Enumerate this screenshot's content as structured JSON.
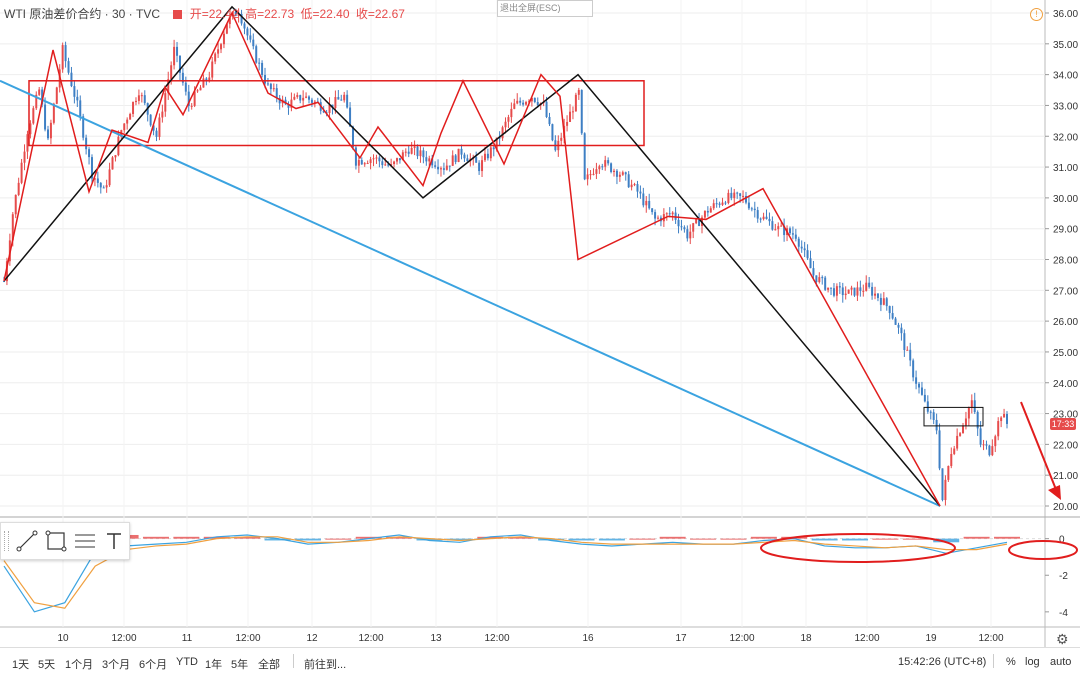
{
  "header": {
    "title": "WTI 原油差价合约 · 30 · TVC",
    "open": "开=22.42",
    "high": "高=22.73",
    "low": "低=22.40",
    "close": "收=22.67"
  },
  "exit_fullscreen": "退出全屏(ESC)",
  "price_tag": "17:33",
  "ranges": [
    "1天",
    "5天",
    "1个月",
    "3个月",
    "6个月",
    "YTD",
    "1年",
    "5年",
    "全部"
  ],
  "goto": "前往到...",
  "clock": "15:42:26 (UTC+8)",
  "options": [
    "%",
    "log",
    "auto"
  ],
  "toolbar_icons": [
    "line-tool-icon",
    "rectangle-tool-icon",
    "fib-tool-icon",
    "text-tool-icon"
  ],
  "colors": {
    "up": "#e64b4b",
    "down": "#3e7fc4",
    "trendline": "#3ba3e0",
    "zigzag_red": "#e11d1d",
    "zigzag_black": "#111111",
    "macd_line": "#3ba3e0",
    "signal_line": "#f0a040"
  },
  "chart_data": [
    {
      "type": "candlestick",
      "title": "WTI 原油差价合约 · 30 · TVC",
      "y_axis_ticks": [
        20.0,
        21.0,
        22.0,
        23.0,
        24.0,
        25.0,
        26.0,
        27.0,
        28.0,
        29.0,
        30.0,
        31.0,
        32.0,
        33.0,
        34.0,
        35.0,
        36.0
      ],
      "x_axis_ticks": [
        "10",
        "12:00",
        "11",
        "12:00",
        "12",
        "12:00",
        "13",
        "12:00",
        "16",
        "17",
        "12:00",
        "18",
        "12:00",
        "19",
        "12:00"
      ],
      "ylim": [
        20.0,
        36.0
      ],
      "current_price": 22.67,
      "price_path": [
        {
          "i": 0,
          "p": 27.3
        },
        {
          "i": 3,
          "p": 29.5
        },
        {
          "i": 8,
          "p": 32.2
        },
        {
          "i": 12,
          "p": 33.5
        },
        {
          "i": 15,
          "p": 31.8
        },
        {
          "i": 20,
          "p": 34.8
        },
        {
          "i": 25,
          "p": 33.0
        },
        {
          "i": 30,
          "p": 30.8
        },
        {
          "i": 34,
          "p": 30.2
        },
        {
          "i": 40,
          "p": 32.2
        },
        {
          "i": 46,
          "p": 33.5
        },
        {
          "i": 52,
          "p": 32.0
        },
        {
          "i": 58,
          "p": 34.8
        },
        {
          "i": 63,
          "p": 33.0
        },
        {
          "i": 70,
          "p": 34.0
        },
        {
          "i": 76,
          "p": 35.7
        },
        {
          "i": 80,
          "p": 36.1
        },
        {
          "i": 84,
          "p": 35.0
        },
        {
          "i": 90,
          "p": 33.6
        },
        {
          "i": 96,
          "p": 33.0
        },
        {
          "i": 102,
          "p": 33.3
        },
        {
          "i": 110,
          "p": 32.9
        },
        {
          "i": 116,
          "p": 33.3
        },
        {
          "i": 120,
          "p": 31.2
        },
        {
          "i": 126,
          "p": 31.3
        },
        {
          "i": 132,
          "p": 31.0
        },
        {
          "i": 138,
          "p": 31.6
        },
        {
          "i": 144,
          "p": 31.3
        },
        {
          "i": 150,
          "p": 31.0
        },
        {
          "i": 156,
          "p": 31.5
        },
        {
          "i": 162,
          "p": 31.0
        },
        {
          "i": 168,
          "p": 31.8
        },
        {
          "i": 174,
          "p": 33.0
        },
        {
          "i": 180,
          "p": 33.3
        },
        {
          "i": 184,
          "p": 33.0
        },
        {
          "i": 188,
          "p": 31.5
        },
        {
          "i": 192,
          "p": 32.5
        },
        {
          "i": 196,
          "p": 33.4
        },
        {
          "i": 198,
          "p": 30.5
        },
        {
          "i": 203,
          "p": 31.2
        },
        {
          "i": 210,
          "p": 30.8
        },
        {
          "i": 216,
          "p": 30.2
        },
        {
          "i": 222,
          "p": 29.3
        },
        {
          "i": 228,
          "p": 29.5
        },
        {
          "i": 233,
          "p": 28.8
        },
        {
          "i": 240,
          "p": 29.6
        },
        {
          "i": 246,
          "p": 30.0
        },
        {
          "i": 252,
          "p": 30.0
        },
        {
          "i": 258,
          "p": 29.4
        },
        {
          "i": 264,
          "p": 29.0
        },
        {
          "i": 270,
          "p": 28.8
        },
        {
          "i": 276,
          "p": 27.5
        },
        {
          "i": 282,
          "p": 27.0
        },
        {
          "i": 288,
          "p": 26.9
        },
        {
          "i": 294,
          "p": 27.1
        },
        {
          "i": 298,
          "p": 26.8
        },
        {
          "i": 302,
          "p": 26.4
        },
        {
          "i": 306,
          "p": 25.5
        },
        {
          "i": 310,
          "p": 24.3
        },
        {
          "i": 314,
          "p": 23.3
        },
        {
          "i": 318,
          "p": 22.5
        },
        {
          "i": 320,
          "p": 20.2
        },
        {
          "i": 323,
          "p": 21.8
        },
        {
          "i": 326,
          "p": 22.5
        },
        {
          "i": 330,
          "p": 23.4
        },
        {
          "i": 333,
          "p": 22.0
        },
        {
          "i": 336,
          "p": 21.8
        },
        {
          "i": 340,
          "p": 23.0
        },
        {
          "i": 342,
          "p": 22.67
        }
      ],
      "trendline": [
        {
          "t": "9 open",
          "p": 33.8
        },
        {
          "t": "19 ~02:00",
          "p": 20.0
        }
      ],
      "zigzag_black": [
        27.3,
        36.2,
        30.0,
        34.0,
        20.0
      ],
      "zigzag_red": [
        27.3,
        34.8,
        30.2,
        32.2,
        31.8,
        33.6,
        32.7,
        36.0,
        33.4,
        32.9,
        33.1,
        31.3,
        32.3,
        30.4,
        32.1,
        33.8,
        31.1,
        34.0,
        33.3,
        28.0,
        29.4,
        29.3,
        30.3,
        20.0
      ],
      "boxes": [
        {
          "top": 33.8,
          "bottom": 31.7
        },
        {
          "top": 23.2,
          "bottom": 22.6
        }
      ]
    },
    {
      "type": "line",
      "title": "",
      "y_axis_ticks": [
        0,
        -2,
        -4
      ],
      "ylim": [
        -4.5,
        0.8
      ],
      "series": [
        {
          "values": [
            -1.5,
            -4.0,
            -3.5,
            -0.7,
            -0.4,
            -0.3,
            -0.2,
            0.1,
            0.2,
            0.0,
            -0.3,
            -0.2,
            0.0,
            0.2,
            -0.1,
            -0.2,
            0.1,
            0.2,
            -0.1,
            -0.3,
            -0.4,
            -0.3,
            -0.2,
            -0.3,
            -0.3,
            -0.1,
            0.0,
            -0.4,
            -0.5,
            -0.5,
            -0.4,
            -0.8,
            -0.5,
            -0.2
          ]
        },
        {
          "values": [
            -1.2,
            -3.5,
            -3.8,
            -1.5,
            -0.6,
            -0.4,
            -0.3,
            0.0,
            0.1,
            0.1,
            -0.2,
            -0.2,
            -0.1,
            0.1,
            0.0,
            -0.1,
            0.0,
            0.1,
            0.0,
            -0.2,
            -0.3,
            -0.3,
            -0.3,
            -0.3,
            -0.3,
            -0.2,
            -0.1,
            -0.3,
            -0.4,
            -0.5,
            -0.4,
            -0.6,
            -0.6,
            -0.3
          ]
        }
      ],
      "histogram": [
        0.2,
        -0.5,
        0.3,
        0.7,
        0.2,
        0.1,
        0.1,
        0.1,
        0.1,
        -0.1,
        -0.1,
        0.0,
        0.1,
        0.1,
        -0.1,
        -0.1,
        0.1,
        0.1,
        -0.1,
        -0.1,
        -0.1,
        0.0,
        0.1,
        0.0,
        0.0,
        0.1,
        0.1,
        -0.1,
        -0.1,
        0.0,
        0.0,
        -0.2,
        0.1,
        0.1
      ],
      "annotations": [
        "ellipse-around-histogram-18-19",
        "ellipse-at-right-edge"
      ]
    }
  ]
}
